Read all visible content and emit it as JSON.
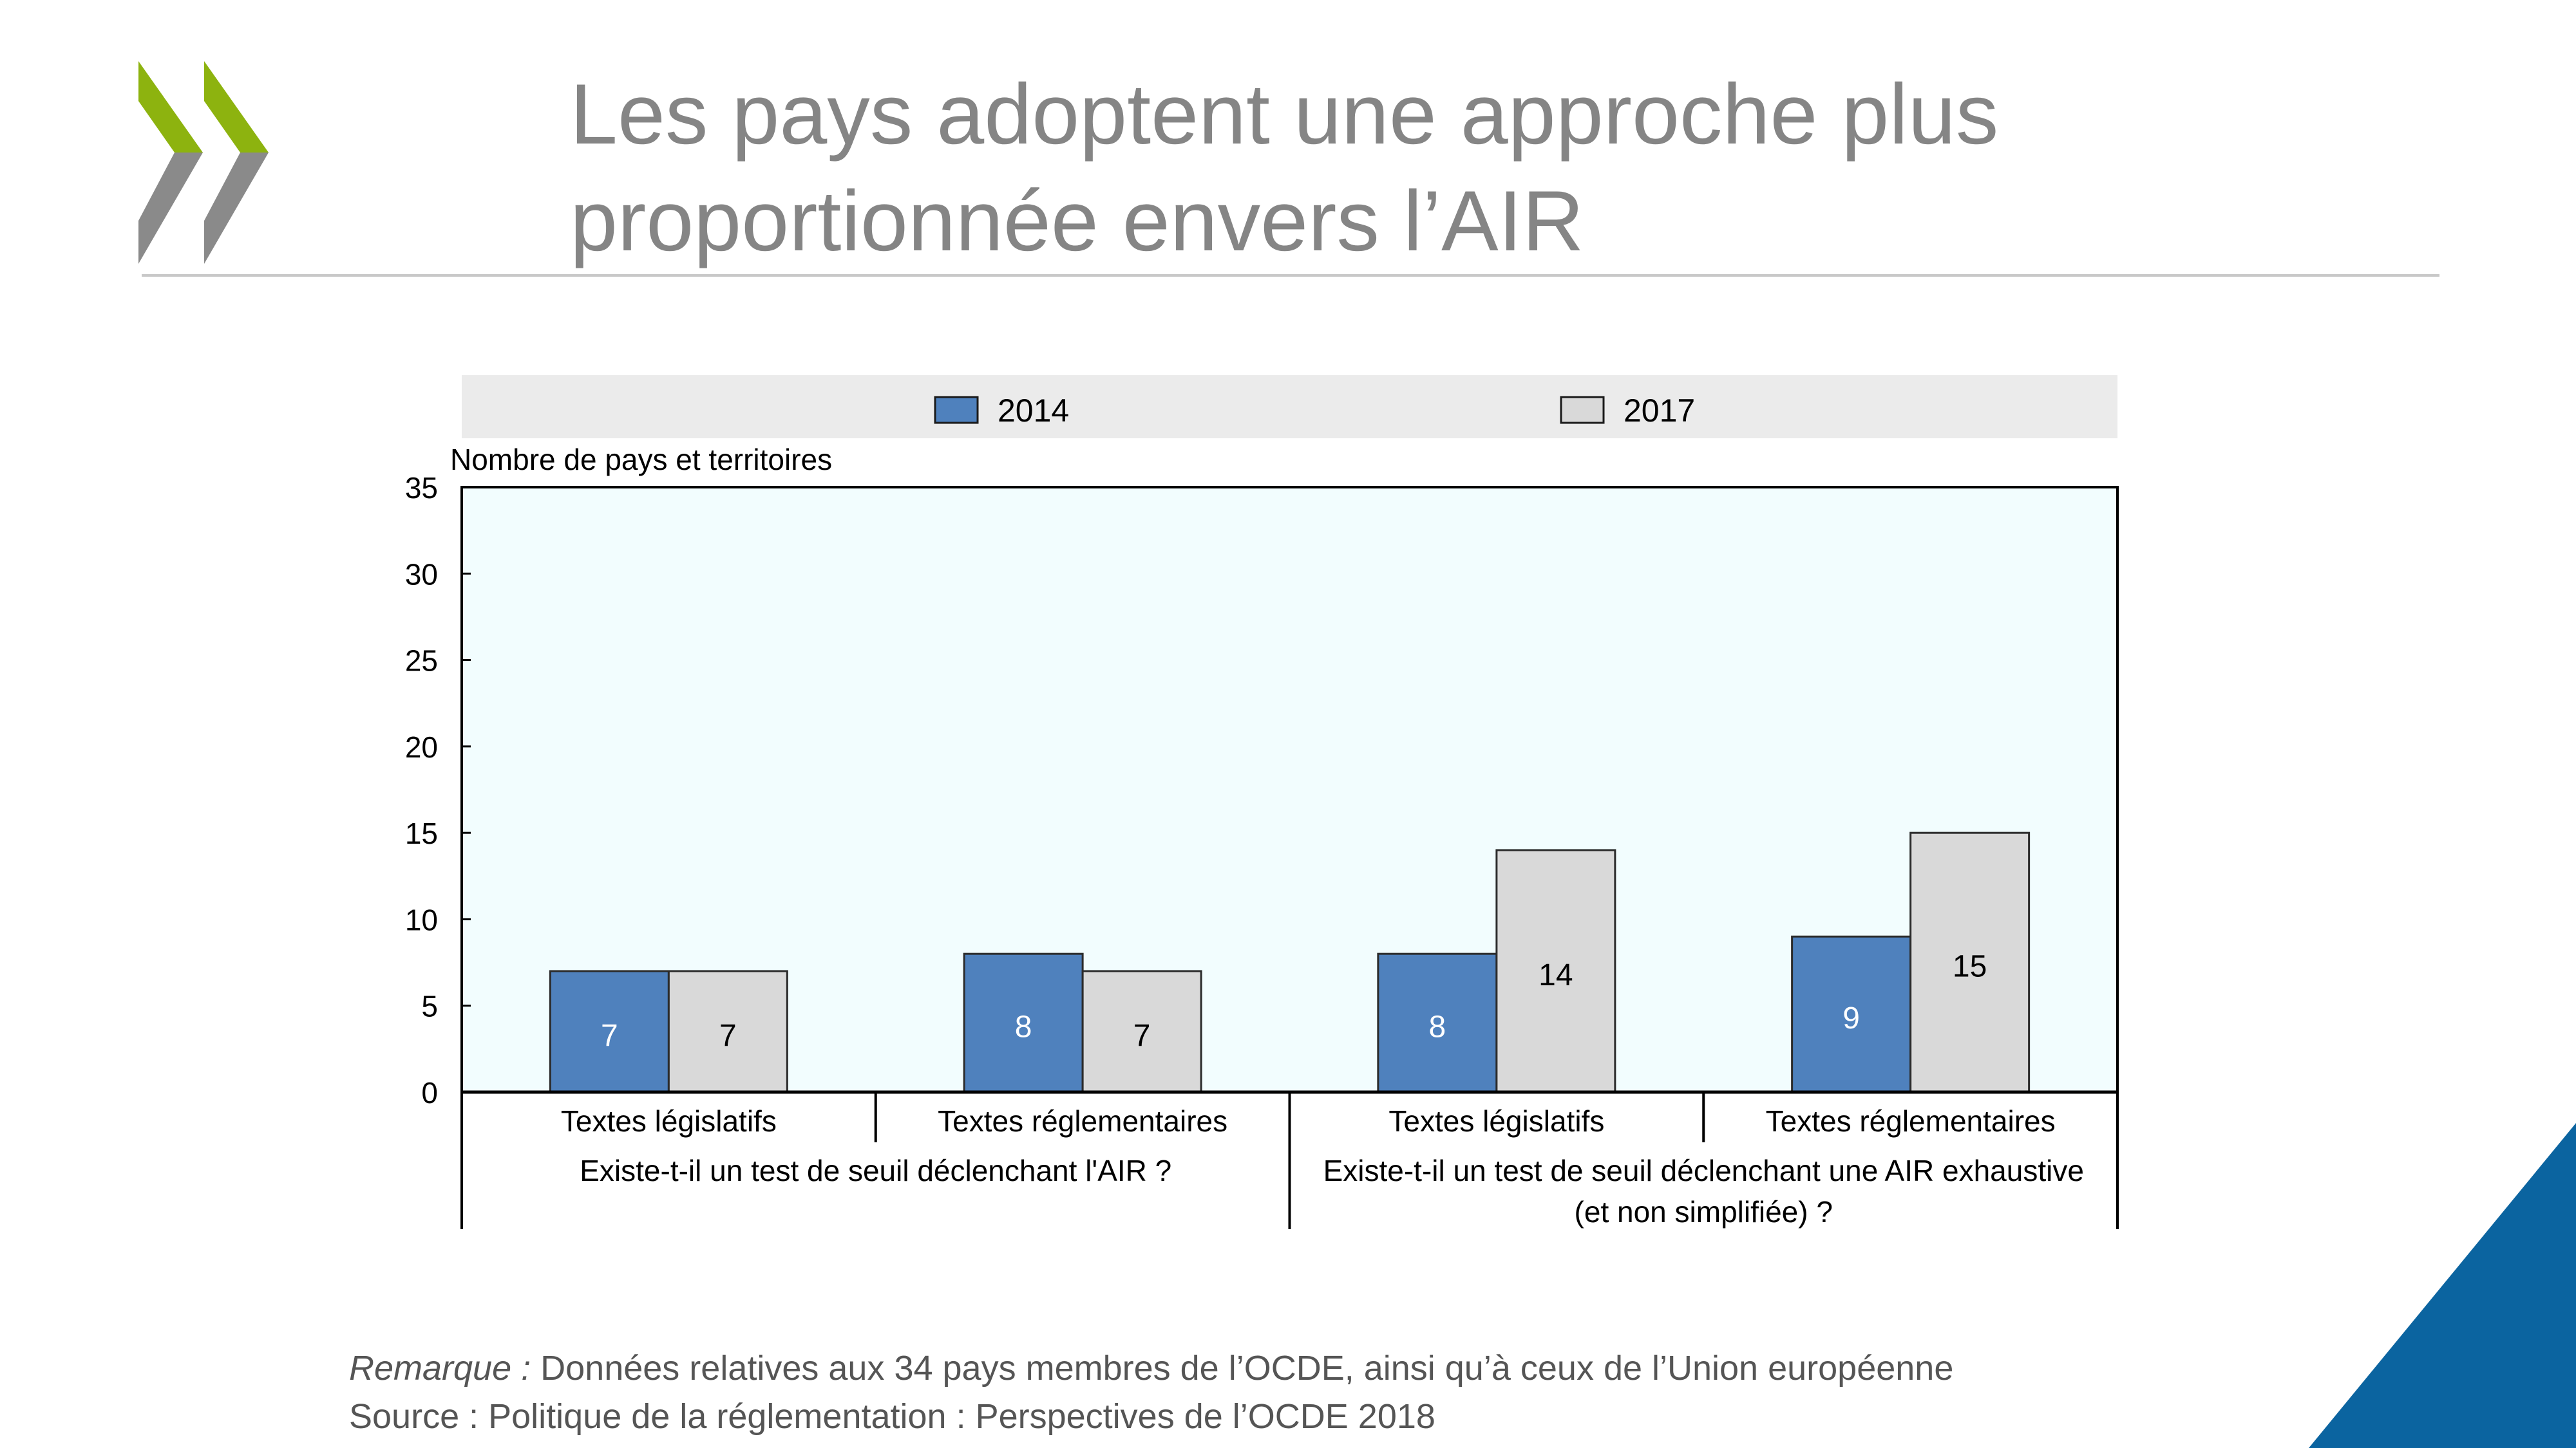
{
  "slide": {
    "title_line1": "Les pays adoptent une approche plus",
    "title_line2": "proportionnée envers l’AIR",
    "note_label": "Remarque :",
    "note_text": " Données relatives aux 34 pays membres de l’OCDE, ainsi qu’à ceux de l’Union européenne",
    "source_text": "Source : Politique de la réglementation : Perspectives de l’OCDE 2018"
  },
  "colors": {
    "logo_green": "#8DB30F",
    "logo_grey": "#8A8A8A",
    "series_2014": "#4F81BD",
    "series_2017": "#D9D9D9",
    "plot_background": "#F2FDFE",
    "legend_background": "#EBEBEB",
    "corner_blue": "#0B64A0",
    "title_grey": "#858585"
  },
  "chart_data": {
    "type": "bar",
    "ylabel": "Nombre de pays et territoires",
    "ylim": [
      0,
      35
    ],
    "yticks": [
      0,
      5,
      10,
      15,
      20,
      25,
      30,
      35
    ],
    "categories": [
      "Textes législatifs",
      "Textes réglementaires",
      "Textes législatifs",
      "Textes réglementaires"
    ],
    "groups": [
      {
        "label": "Existe-t-il un test de seuil déclenchant l'AIR ?",
        "lines": [
          "Existe-t-il un test de seuil déclenchant l'AIR ?"
        ],
        "span": 2
      },
      {
        "label": "Existe-t-il un test de seuil déclenchant une AIR exhaustive (et non simplifiée) ?",
        "lines": [
          "Existe-t-il un test de seuil déclenchant une AIR exhaustive",
          "(et non simplifiée) ?"
        ],
        "span": 2
      }
    ],
    "series": [
      {
        "name": "2014",
        "values": [
          7,
          8,
          8,
          9
        ]
      },
      {
        "name": "2017",
        "values": [
          7,
          7,
          14,
          15
        ]
      }
    ],
    "legend": "top",
    "grid": false
  }
}
